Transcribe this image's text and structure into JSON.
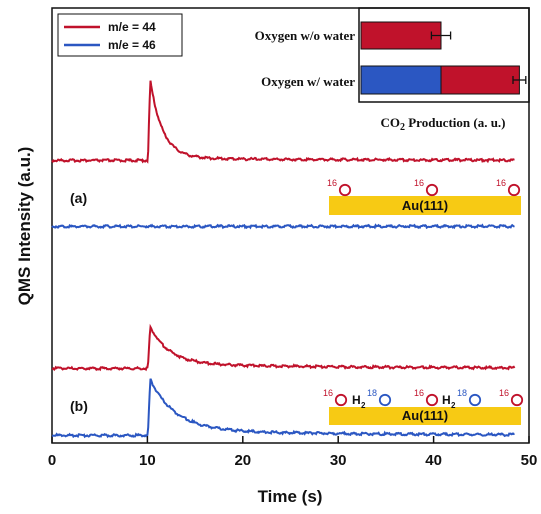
{
  "colors": {
    "red": "#c0122b",
    "blue": "#2b57c2",
    "gold": "#f7ca14"
  },
  "chart_data": [
    {
      "type": "line",
      "xlabel": "Time (s)",
      "ylabel": "QMS Intensity (a.u.)",
      "xlim": [
        0,
        50
      ],
      "xticks": [
        "0",
        "10",
        "20",
        "30",
        "40",
        "50"
      ],
      "legend": {
        "placement": "top-left",
        "entries": [
          {
            "label": "m/e = 44",
            "color": "#c0122b"
          },
          {
            "label": "m/e = 46",
            "color": "#2b57c2"
          }
        ]
      },
      "panels": [
        {
          "label": "(a)",
          "surface": "Au(111)",
          "adsorbates": [
            {
              "mass": "16",
              "species": "O",
              "kind": "oxygen"
            },
            {
              "mass": "16",
              "species": "O",
              "kind": "oxygen"
            },
            {
              "mass": "16",
              "species": "O",
              "kind": "oxygen"
            }
          ],
          "series": [
            {
              "name": "m/e = 44",
              "baseline": 0.0,
              "peak_time": 10.3,
              "peak_height": 1.0,
              "decay": 1.3,
              "tail": 0.03
            },
            {
              "name": "m/e = 46",
              "baseline": 0.0,
              "peak_time": 10.3,
              "peak_height": 0.0,
              "decay": 1.0,
              "tail": 0.0
            }
          ]
        },
        {
          "label": "(b)",
          "surface": "Au(111)",
          "adsorbates": [
            {
              "mass": "16",
              "species": "O",
              "kind": "oxygen"
            },
            {
              "mass": "18",
              "species": "O",
              "kind": "water",
              "prefix": "H",
              "prefix_sub": "2"
            },
            {
              "mass": "16",
              "species": "O",
              "kind": "oxygen"
            },
            {
              "mass": "18",
              "species": "O",
              "kind": "water",
              "prefix": "H",
              "prefix_sub": "2"
            },
            {
              "mass": "16",
              "species": "O",
              "kind": "oxygen"
            }
          ],
          "series": [
            {
              "name": "m/e = 44",
              "baseline": 0.0,
              "peak_time": 10.3,
              "peak_height": 0.52,
              "decay": 2.0,
              "tail": 0.06
            },
            {
              "name": "m/e = 46",
              "baseline": 0.0,
              "peak_time": 10.3,
              "peak_height": 0.7,
              "decay": 2.6,
              "tail": 0.07
            }
          ]
        }
      ]
    },
    {
      "type": "bar",
      "orientation": "horizontal",
      "xlabel": "CO2 Production (a. u.)",
      "xlabel_parts": {
        "main": "CO",
        "sub": "2",
        "rest": " Production (a. u.)"
      },
      "xlim": [
        0,
        1.05
      ],
      "categories": [
        "Oxygen w/o water",
        "Oxygen w/ water"
      ],
      "stacks": [
        [
          {
            "color": "#c0122b",
            "value": 0.5,
            "error": 0.06
          }
        ],
        [
          {
            "color": "#2b57c2",
            "value": 0.5
          },
          {
            "color": "#c0122b",
            "value": 0.49,
            "error": 0.04
          }
        ]
      ]
    }
  ]
}
